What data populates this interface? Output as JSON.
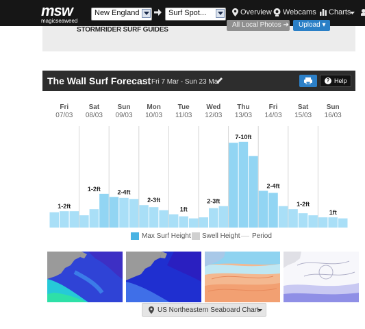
{
  "topbar": {
    "logo_word": "msw",
    "logo_sub": "magicseaweed",
    "region_select": "New England",
    "spot_select": "Surf Spot...",
    "nav": {
      "overview": "Overview",
      "webcams": "Webcams",
      "charts": "Charts"
    }
  },
  "hero": {
    "stormrider": "STORMRIDER SURF GUIDES",
    "all_photos_button": "All Local Photos ➔",
    "upload_button": "Upload ▾"
  },
  "forecast": {
    "title": "The Wall Surf Forecast",
    "date_range": "Fri 7 Mar - Sun 23 Mar",
    "help_label": "Help",
    "help_q": "?"
  },
  "chart_data": {
    "type": "bar",
    "title": "",
    "xlabel": "",
    "ylabel": "",
    "days": [
      {
        "day": "Fri",
        "date": "07/03",
        "label": "1-2ft"
      },
      {
        "day": "Sat",
        "date": "08/03",
        "label": "1-2ft"
      },
      {
        "day": "Sun",
        "date": "09/03",
        "label": "2-4ft"
      },
      {
        "day": "Mon",
        "date": "10/03",
        "label": "2-3ft"
      },
      {
        "day": "Tue",
        "date": "11/03",
        "label": "1ft"
      },
      {
        "day": "Wed",
        "date": "12/03",
        "label": "2-3ft"
      },
      {
        "day": "Thu",
        "date": "13/03",
        "label": "7-10ft"
      },
      {
        "day": "Fri",
        "date": "14/03",
        "label": "2-4ft"
      },
      {
        "day": "Sat",
        "date": "15/03",
        "label": "1-2ft"
      },
      {
        "day": "Sun",
        "date": "16/03",
        "label": "1ft"
      }
    ],
    "series": [
      {
        "name": "Max Surf Height",
        "values": [
          1.5,
          1.6,
          1.6,
          1.2,
          1.8,
          3.3,
          3.0,
          2.9,
          2.8,
          2.2,
          2.0,
          1.7,
          1.3,
          1.1,
          0.9,
          1.0,
          1.9,
          2.1,
          8.3,
          8.4,
          7.0,
          3.6,
          3.4,
          2.1,
          1.8,
          1.4,
          1.2,
          1.0,
          1.0,
          0.9
        ]
      },
      {
        "name": "Swell Height",
        "values": [
          1.4,
          1.5,
          1.5,
          1.2,
          1.7,
          3.1,
          2.9,
          2.8,
          2.7,
          2.1,
          1.9,
          1.6,
          1.2,
          1.0,
          0.9,
          0.9,
          1.8,
          2.0,
          8.2,
          8.3,
          6.9,
          3.5,
          3.3,
          2.0,
          1.7,
          1.3,
          1.1,
          0.9,
          0.9,
          0.8
        ]
      }
    ],
    "ylim": [
      0,
      10
    ],
    "legend": [
      "Max Surf Height",
      "Swell Height",
      "Period"
    ],
    "colors": {
      "bar": "#a9dff7",
      "bar_peak": "#92d5f3",
      "grid": "#d6d6d6",
      "swatch_max": "#49b3e3",
      "swatch_swell": "#d0d0d0",
      "swatch_period": "#cccccc"
    }
  },
  "maps": [
    "swell-map",
    "wind-map",
    "pressure-map",
    "period-map"
  ],
  "chart_selector": "US Northeastern Seaboard Chart"
}
